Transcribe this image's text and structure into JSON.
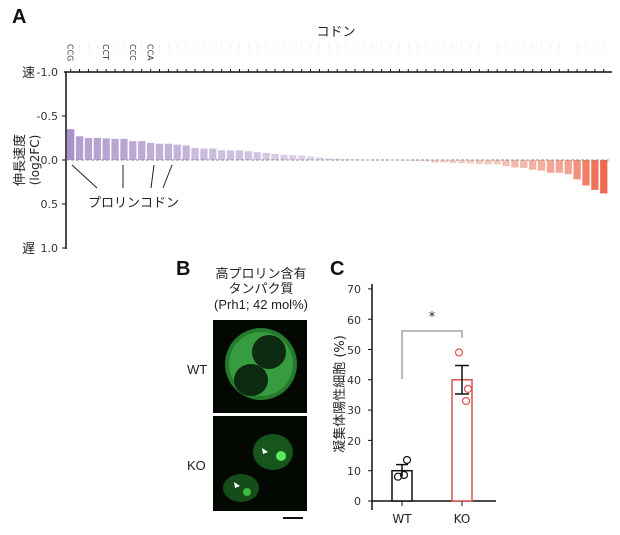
{
  "panel_a": {
    "letter": "A",
    "x_title": "コドン",
    "y_title_line1": "伸長速度",
    "y_title_line2": "(log2FC)",
    "fast_label": "速",
    "slow_label": "遅",
    "yticks": [
      "-1.0",
      "-0.5",
      "0.0",
      "0.5",
      "1.0"
    ],
    "annotation": "プロリンコドン",
    "highlighted_codons": [
      "CCG",
      "CCT",
      "CCC",
      "CCA"
    ]
  },
  "panel_b": {
    "letter": "B",
    "title_line1": "高プロリン含有",
    "title_line2": "タンパク質",
    "title_line3": "(Prh1; 42 mol%)",
    "wt_label": "WT",
    "ko_label": "KO"
  },
  "panel_c": {
    "letter": "C",
    "y_title": "凝集体陽性細胞 (%)",
    "yticks": [
      "0",
      "10",
      "20",
      "30",
      "40",
      "50",
      "60",
      "70"
    ],
    "significance": "*",
    "categories": [
      "WT",
      "KO"
    ]
  },
  "chart_data": [
    {
      "type": "bar",
      "title": "",
      "xlabel": "コドン",
      "ylabel": "伸長速度 (log2FC)",
      "ylim": [
        -1.0,
        1.0
      ],
      "y_inverted": true,
      "y_extremes": {
        "-1.0": "速 (fast)",
        "1.0": "遅 (slow)"
      },
      "grid": false,
      "n_codons": 61,
      "labeled_codons": {
        "CCG": 1,
        "CCT": 5,
        "CCC": 8,
        "CCA": 10
      },
      "values": [
        -0.35,
        -0.27,
        -0.25,
        -0.25,
        -0.245,
        -0.24,
        -0.24,
        -0.215,
        -0.215,
        -0.195,
        -0.185,
        -0.185,
        -0.175,
        -0.165,
        -0.135,
        -0.13,
        -0.13,
        -0.11,
        -0.11,
        -0.11,
        -0.1,
        -0.09,
        -0.08,
        -0.07,
        -0.06,
        -0.055,
        -0.05,
        -0.04,
        -0.03,
        -0.02,
        -0.015,
        -0.01,
        -0.005,
        0.0,
        0.0,
        0.0,
        0.0,
        0.0,
        0.005,
        0.01,
        0.015,
        0.03,
        0.03,
        0.035,
        0.035,
        0.04,
        0.045,
        0.05,
        0.05,
        0.07,
        0.085,
        0.09,
        0.11,
        0.12,
        0.145,
        0.145,
        0.16,
        0.22,
        0.29,
        0.34,
        0.38
      ],
      "annotations": [
        "プロリンコドン"
      ]
    },
    {
      "type": "bar",
      "title": "",
      "xlabel": "",
      "ylabel": "凝集体陽性細胞 (%)",
      "ylim": [
        0,
        70
      ],
      "categories": [
        "WT",
        "KO"
      ],
      "values": [
        10,
        40
      ],
      "error_sem": [
        2,
        4.7
      ],
      "points": {
        "WT": [
          13.5,
          8,
          8.5
        ],
        "KO": [
          49,
          37,
          33
        ]
      },
      "significance": "*",
      "colors": {
        "WT": "#111111",
        "KO": "#d9534f"
      }
    }
  ],
  "colors": {
    "fast_bar": "#a58cc6",
    "slow_bar": "#ee6a4f"
  }
}
